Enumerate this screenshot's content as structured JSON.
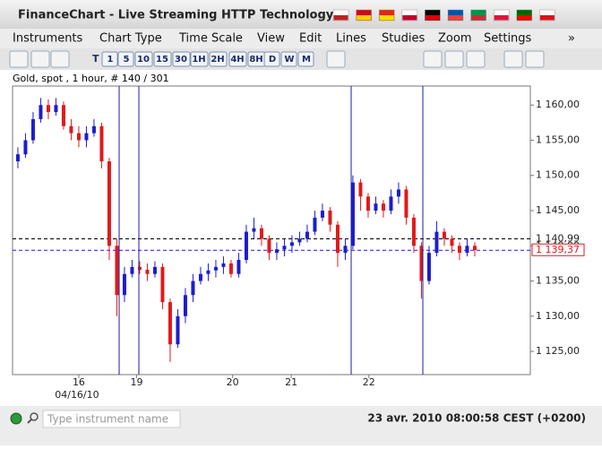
{
  "window": {
    "title": "FinanceChart - Live Streaming HTTP Technology"
  },
  "menu": [
    "Instruments",
    "Chart Type",
    "Time Scale",
    "View",
    "Edit",
    "Lines",
    "Studies",
    "Zoom",
    "Settings",
    "»"
  ],
  "timeframes": [
    "1",
    "5",
    "10",
    "15",
    "30",
    "1H",
    "2H",
    "4H",
    "8H",
    "D",
    "W",
    "M"
  ],
  "chart_data": {
    "type": "candlestick",
    "title": "Gold, spot , 1 hour, # 140 / 301",
    "open": [
      1152,
      1153,
      1155,
      1158,
      1160,
      1159,
      1160,
      1157,
      1156,
      1155,
      1156,
      1157,
      1152,
      1140,
      1133,
      1136,
      1137,
      1136.6,
      1136,
      1137,
      1132,
      1126,
      1130,
      1133,
      1135,
      1136,
      1136.5,
      1137,
      1137.5,
      1136,
      1138,
      1142,
      1142.5,
      1141,
      1139,
      1139.5,
      1140,
      1140.5,
      1141,
      1142,
      1144,
      1145,
      1143,
      1139,
      1140,
      1149,
      1147,
      1145,
      1146,
      1145,
      1147,
      1148,
      1144,
      1140,
      1135,
      1139,
      1142,
      1141,
      1140,
      1139,
      1140
    ],
    "high": [
      1154,
      1156,
      1159,
      1161,
      1160.8,
      1161,
      1160.5,
      1158,
      1157,
      1157,
      1158,
      1157.5,
      1152.5,
      1141,
      1137,
      1138,
      1137.8,
      1137.5,
      1137.8,
      1137.5,
      1132.5,
      1131,
      1134,
      1136,
      1137,
      1137.5,
      1138,
      1138.5,
      1138,
      1139,
      1143,
      1144,
      1143,
      1141.5,
      1140.5,
      1141,
      1141.5,
      1142,
      1143,
      1145,
      1146,
      1145.5,
      1143.5,
      1141,
      1150,
      1149.5,
      1147.5,
      1147,
      1146.5,
      1148,
      1149,
      1148.5,
      1144.5,
      1140.5,
      1140,
      1143.5,
      1142.5,
      1141.5,
      1140.5,
      1141,
      1140.5
    ],
    "low": [
      1151,
      1152.5,
      1154.5,
      1157.5,
      1158,
      1158.5,
      1156.5,
      1155,
      1154,
      1154,
      1155.5,
      1151,
      1138,
      1130,
      1132,
      1135.5,
      1136,
      1135,
      1135.5,
      1131,
      1123.5,
      1125.5,
      1129,
      1132,
      1134.5,
      1135,
      1135.5,
      1136,
      1135.5,
      1135.5,
      1137.5,
      1141,
      1140,
      1138,
      1138,
      1138.5,
      1139,
      1140,
      1140.5,
      1141.5,
      1143.5,
      1142,
      1137,
      1138,
      1139.5,
      1145,
      1144,
      1144.5,
      1144,
      1144.5,
      1146,
      1143,
      1139,
      1132.5,
      1134.5,
      1138.5,
      1140,
      1139,
      1138,
      1138.5,
      1138.5
    ],
    "close": [
      1153,
      1155,
      1158,
      1160,
      1159,
      1160,
      1157,
      1156,
      1155,
      1156,
      1157,
      1152,
      1140,
      1133,
      1136,
      1137,
      1136.6,
      1136,
      1137,
      1132,
      1126,
      1130,
      1133,
      1135,
      1136,
      1136.5,
      1137,
      1137.5,
      1136,
      1138,
      1142,
      1142.5,
      1141,
      1139,
      1139.5,
      1140,
      1140.5,
      1141,
      1142,
      1144,
      1145,
      1143,
      1139,
      1140,
      1149,
      1147,
      1145,
      1146,
      1145,
      1147,
      1148,
      1144,
      1140,
      1135,
      1139,
      1142,
      1141,
      1140,
      1139,
      1140,
      1139.4
    ],
    "up_color": "#1c1cd0",
    "down_color": "#e01a1a",
    "ylim": [
      1121.7,
      1162.7
    ],
    "yticks": [
      {
        "value": 1125,
        "label": "1 125,00"
      },
      {
        "value": 1130,
        "label": "1 130,00"
      },
      {
        "value": 1135,
        "label": "1 135,00"
      },
      {
        "value": 1140,
        "label": "1 140,00"
      },
      {
        "value": 1145,
        "label": "1 145,00"
      },
      {
        "value": 1150,
        "label": "1 150,00"
      },
      {
        "value": 1155,
        "label": "1 155,00"
      },
      {
        "value": 1160,
        "label": "1 160,00"
      }
    ],
    "xlim": [
      -0.7,
      67.3
    ],
    "xticks": [
      {
        "value": 8,
        "label": "16"
      },
      {
        "value": 15.6,
        "label": "19"
      },
      {
        "value": 28.2,
        "label": "20"
      },
      {
        "value": 35.9,
        "label": "21"
      },
      {
        "value": 46.1,
        "label": "22"
      }
    ],
    "date_label": "04/16/10",
    "reference_lines": [
      {
        "value": 1140.99,
        "label": "1 140,99",
        "color": "#000000"
      },
      {
        "value": 1139.37,
        "label": "1 139,37",
        "color": "#1c1cd0"
      }
    ]
  },
  "status": {
    "search_placeholder": "Type instrument name",
    "clock": "23 avr. 2010 08:00:58 CEST (+0200)"
  }
}
